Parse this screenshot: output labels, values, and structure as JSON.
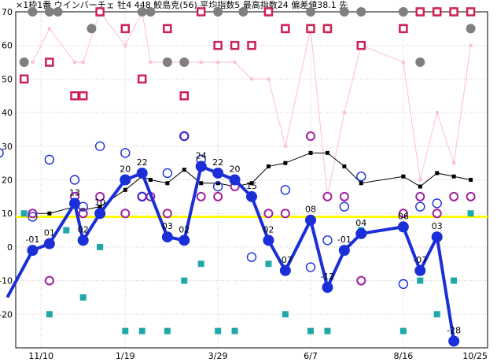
{
  "chart_data": {
    "type": "line",
    "title": "×1枠1番 ウインバーチェ 牡4 448 鮫島克(56) 平均指数5 最高指数24 偏差値38.1 先",
    "ylim": [
      -30,
      70
    ],
    "yticks": [
      -20,
      -10,
      0,
      10,
      20,
      30,
      40,
      50,
      60,
      70
    ],
    "xlim": [
      0,
      28
    ],
    "xticks": [
      {
        "x": 1.5,
        "label": "11/10"
      },
      {
        "x": 6.5,
        "label": "1/19"
      },
      {
        "x": 12,
        "label": "3/29"
      },
      {
        "x": 17.5,
        "label": "6/7"
      },
      {
        "x": 23,
        "label": "8/16"
      },
      {
        "x": 28,
        "label": "10/25"
      }
    ],
    "reference_line": {
      "y": 9,
      "color": "#ffff00"
    },
    "colors": {
      "main": "#1a2fd8",
      "avg": "#000000",
      "upper": "#ffc0cb",
      "ring": "#a020a0",
      "square": "#cc2255",
      "gray": "#7f7f7f",
      "teal": "#20a8a8",
      "ring_blue": "#1a2fd8"
    },
    "series": [
      {
        "role": "main",
        "x": [
          -0.5,
          1,
          2,
          3.5,
          4,
          5,
          6.5,
          7.5,
          9,
          10,
          11,
          12,
          13,
          14,
          15,
          16,
          17.5,
          18.5,
          19.5,
          20.5,
          23,
          24,
          25,
          26
        ],
        "values": [
          -15,
          -1,
          1,
          13,
          2,
          10,
          20,
          22,
          3,
          2,
          24,
          22,
          20,
          15,
          2,
          -7,
          8,
          -12,
          -1,
          4,
          6,
          -7,
          3,
          -28
        ]
      },
      {
        "role": "avg",
        "x": [
          1,
          2,
          3.5,
          4,
          5,
          6.5,
          7.5,
          8,
          9,
          10,
          11,
          12,
          13,
          14,
          15,
          16,
          17.5,
          18.5,
          19.5,
          20.5,
          23,
          24,
          25,
          26,
          27
        ],
        "values": [
          10,
          10,
          12,
          11,
          12,
          17,
          21,
          20,
          19,
          23,
          19,
          19,
          18,
          19,
          24,
          25,
          28,
          28,
          24,
          19,
          21,
          18,
          22,
          21,
          20
        ]
      },
      {
        "role": "upper",
        "x": [
          1,
          2,
          3.5,
          4,
          5,
          6.5,
          7.5,
          8,
          9,
          10,
          11,
          12,
          13,
          14,
          15,
          16,
          17.5,
          18.5,
          19.5,
          20.5,
          23,
          24,
          25,
          26,
          27
        ],
        "values": [
          55,
          65,
          55,
          55,
          70,
          60,
          70,
          55,
          55,
          55,
          55,
          55,
          55,
          50,
          50,
          30,
          65,
          15,
          40,
          60,
          55,
          20,
          40,
          25,
          60
        ]
      }
    ],
    "data_labels": [
      {
        "x": 1,
        "y": -1,
        "text": "-01"
      },
      {
        "x": 2,
        "y": 1,
        "text": "01"
      },
      {
        "x": 3.5,
        "y": 13,
        "text": "13"
      },
      {
        "x": 4,
        "y": 2,
        "text": "02"
      },
      {
        "x": 5,
        "y": 10,
        "text": "10"
      },
      {
        "x": 6.5,
        "y": 20,
        "text": "20"
      },
      {
        "x": 7.5,
        "y": 22,
        "text": "22"
      },
      {
        "x": 9,
        "y": 3,
        "text": "03"
      },
      {
        "x": 10,
        "y": 2,
        "text": "02"
      },
      {
        "x": 11,
        "y": 24,
        "text": "24"
      },
      {
        "x": 12,
        "y": 22,
        "text": "22"
      },
      {
        "x": 13,
        "y": 20,
        "text": "20"
      },
      {
        "x": 14,
        "y": 15,
        "text": "15"
      },
      {
        "x": 15,
        "y": 2,
        "text": "02"
      },
      {
        "x": 16,
        "y": -7,
        "text": "-07"
      },
      {
        "x": 17.5,
        "y": 8,
        "text": "08"
      },
      {
        "x": 18.5,
        "y": -12,
        "text": "-12"
      },
      {
        "x": 19.5,
        "y": -1,
        "text": "-01"
      },
      {
        "x": 20.5,
        "y": 4,
        "text": "04"
      },
      {
        "x": 23,
        "y": 6,
        "text": "06"
      },
      {
        "x": 24,
        "y": -7,
        "text": "-07"
      },
      {
        "x": 25,
        "y": 3,
        "text": "03"
      },
      {
        "x": 26,
        "y": -28,
        "text": "-28"
      }
    ],
    "markers": {
      "ring_blue": {
        "x": [
          -1,
          1,
          2,
          3.5,
          4,
          5,
          6.5,
          7.5,
          9,
          10,
          11,
          12,
          14,
          16,
          17.5,
          18.5,
          19.5,
          20.5,
          23,
          24,
          25,
          26
        ],
        "values": [
          28,
          9,
          26,
          20,
          12,
          30,
          28,
          15,
          22,
          33,
          26,
          18,
          -3,
          17,
          -6,
          2,
          12,
          21,
          -11,
          12,
          13,
          -28
        ]
      },
      "ring_purple": {
        "x": [
          1,
          2,
          3.5,
          4,
          5,
          6.5,
          7.5,
          8,
          9,
          10,
          11,
          12,
          13,
          14,
          15,
          16,
          17.5,
          18.5,
          19.5,
          20.5,
          23,
          24,
          25,
          26,
          27
        ],
        "values": [
          10,
          -10,
          15,
          10,
          15,
          10,
          15,
          15,
          10,
          33,
          15,
          15,
          18,
          15,
          10,
          10,
          33,
          15,
          15,
          -10,
          10,
          15,
          10,
          15,
          15
        ]
      },
      "square": {
        "x": [
          0.5,
          2,
          3.5,
          4,
          5,
          6.5,
          7.5,
          9,
          10,
          11,
          12,
          13,
          14,
          15,
          16,
          17.5,
          18.5,
          20.5,
          23,
          24,
          25,
          26,
          27
        ],
        "values": [
          50,
          55,
          45,
          45,
          70,
          65,
          50,
          65,
          45,
          70,
          60,
          60,
          60,
          70,
          65,
          65,
          65,
          60,
          65,
          70,
          70,
          70,
          70
        ]
      },
      "gray": {
        "x": [
          0.5,
          1,
          2,
          2.5,
          4.5,
          5,
          7.5,
          8,
          9,
          10,
          12,
          13.5,
          15,
          16,
          17.5,
          18.5,
          19.5,
          20.5,
          23,
          24,
          25,
          26,
          27
        ],
        "values": [
          55,
          70,
          70,
          70,
          65,
          70,
          70,
          70,
          55,
          55,
          70,
          70,
          70,
          65,
          70,
          65,
          70,
          70,
          70,
          55,
          70,
          70,
          65
        ]
      },
      "teal": {
        "x": [
          0.5,
          2,
          3,
          4,
          5,
          6.5,
          7.5,
          9,
          10,
          11,
          12,
          13,
          15,
          16,
          17.5,
          18.5,
          20.5,
          23,
          24,
          25,
          26,
          27
        ],
        "values": [
          10,
          -20,
          5,
          -15,
          0,
          -25,
          -25,
          -25,
          -10,
          -5,
          -25,
          -25,
          -5,
          -20,
          -25,
          -25,
          5,
          -25,
          -10,
          -20,
          -10,
          10
        ]
      }
    }
  }
}
